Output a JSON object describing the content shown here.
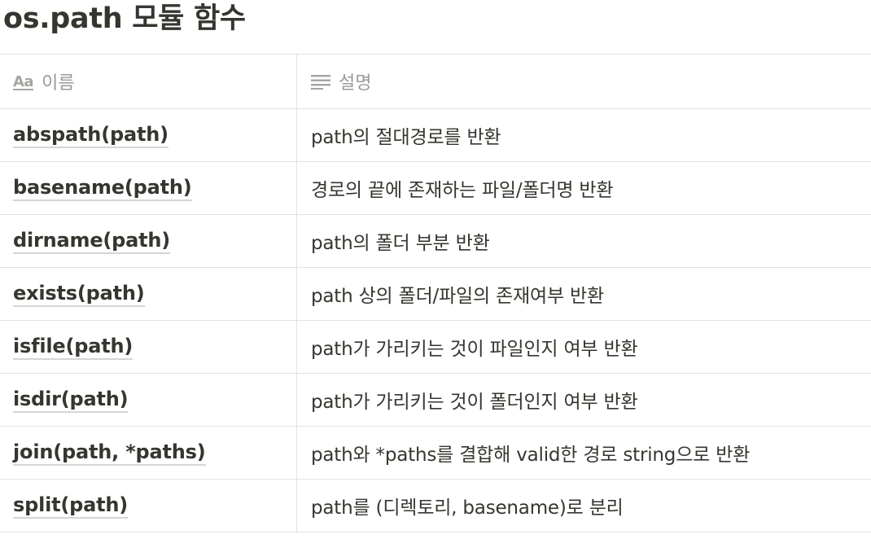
{
  "page": {
    "title": "os.path 모듈 함수"
  },
  "table": {
    "columns": [
      {
        "label": "이름",
        "icon": "text-aa-icon"
      },
      {
        "label": "설명",
        "icon": "lines-text-icon"
      }
    ],
    "rows": [
      {
        "name": "abspath(path)",
        "description": "path의 절대경로를 반환"
      },
      {
        "name": "basename(path)",
        "description": "경로의 끝에 존재하는 파일/폴더명 반환"
      },
      {
        "name": "dirname(path)",
        "description": "path의 폴더 부분 반환"
      },
      {
        "name": "exists(path)",
        "description": "path 상의 폴더/파일의 존재여부 반환"
      },
      {
        "name": "isfile(path)",
        "description": "path가 가리키는 것이 파일인지 여부 반환"
      },
      {
        "name": "isdir(path)",
        "description": "path가 가리키는 것이 폴더인지 여부 반환"
      },
      {
        "name": "join(path, *paths)",
        "description": "path와 *paths를 결합해 valid한 경로 string으로 반환"
      },
      {
        "name": "split(path)",
        "description": "path를 (디렉토리, basename)로 분리"
      }
    ]
  },
  "colors": {
    "text": "#37352f",
    "muted": "#9b9a97",
    "border": "#e3e2e0"
  }
}
